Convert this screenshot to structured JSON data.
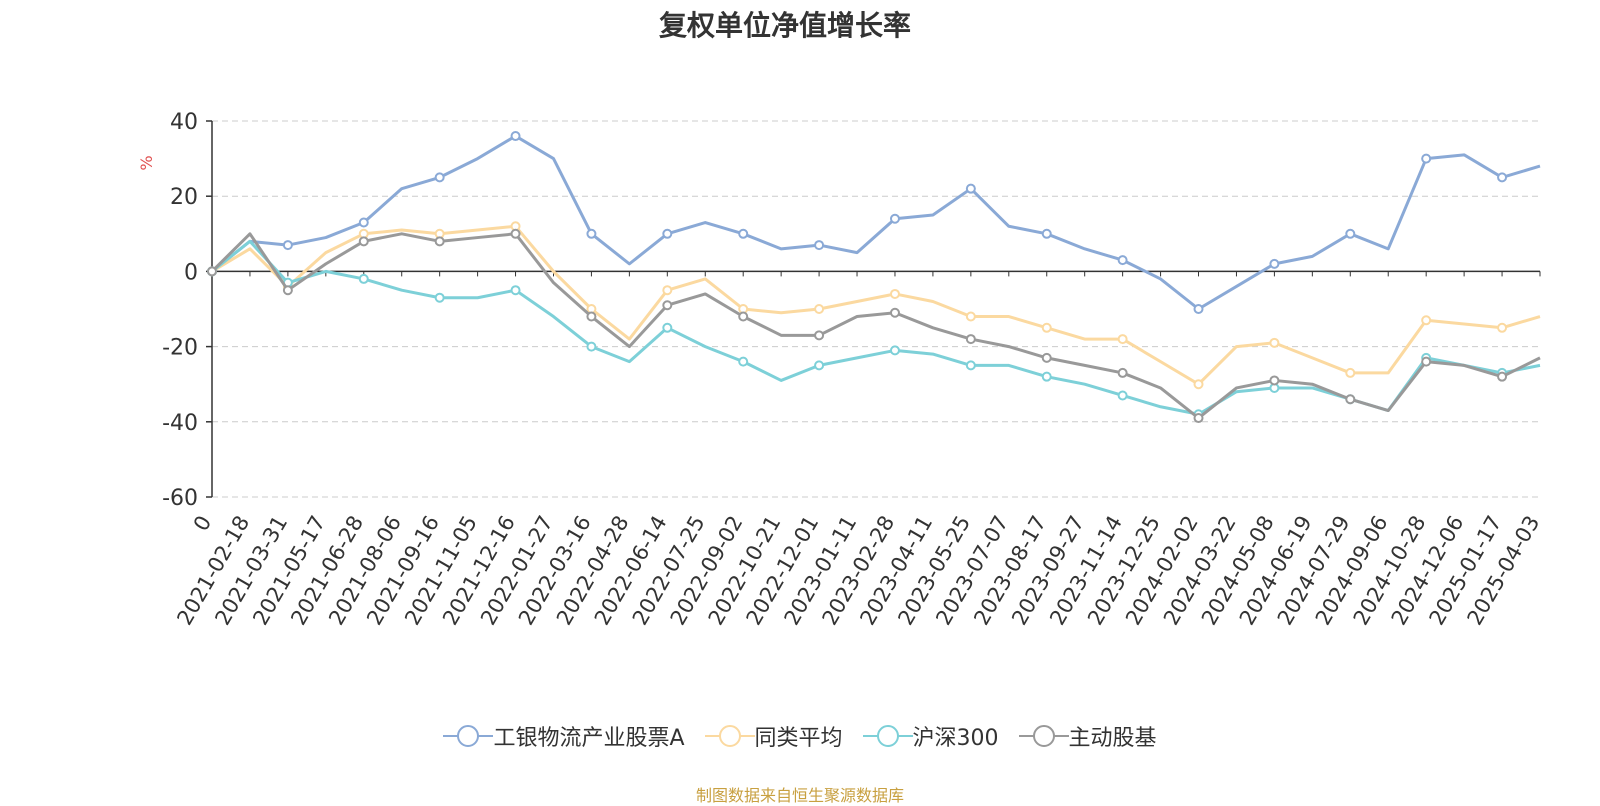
{
  "chart_data": {
    "type": "line",
    "title": "复权单位净值增长率",
    "ylabel": "%",
    "xlabel": "",
    "ylim": [
      -60,
      40
    ],
    "yticks": [
      40,
      20,
      0,
      -20,
      -40,
      -60
    ],
    "grid": true,
    "legend_position": "bottom",
    "x_tick_labels": [
      "0",
      "2021-02-18",
      "2021-03-31",
      "2021-05-17",
      "2021-06-28",
      "2021-08-06",
      "2021-09-16",
      "2021-11-05",
      "2021-12-16",
      "2022-01-27",
      "2022-03-16",
      "2022-04-28",
      "2022-06-14",
      "2022-07-25",
      "2022-09-02",
      "2022-10-21",
      "2022-12-01",
      "2023-01-11",
      "2023-02-28",
      "2023-04-11",
      "2023-05-25",
      "2023-07-07",
      "2023-08-17",
      "2023-09-27",
      "2023-11-14",
      "2023-12-25",
      "2024-02-02",
      "2024-03-22",
      "2024-05-08",
      "2024-06-19",
      "2024-07-29",
      "2024-09-06",
      "2024-10-28",
      "2024-12-06",
      "2025-01-17",
      "2025-04-03"
    ],
    "series": [
      {
        "name": "工银物流产业股票A",
        "color": "#8aa9d6",
        "values": [
          0,
          8,
          7,
          9,
          13,
          22,
          25,
          30,
          36,
          30,
          10,
          2,
          10,
          13,
          10,
          6,
          7,
          5,
          14,
          15,
          22,
          12,
          10,
          6,
          3,
          -2,
          -10,
          -4,
          2,
          4,
          10,
          6,
          30,
          31,
          25,
          28
        ]
      },
      {
        "name": "同类平均",
        "color": "#fbd9a0",
        "values": [
          0,
          6,
          -4,
          5,
          10,
          11,
          10,
          11,
          12,
          0,
          -10,
          -18,
          -5,
          -2,
          -10,
          -11,
          -10,
          -8,
          -6,
          -8,
          -12,
          -12,
          -15,
          -18,
          -18,
          -24,
          -30,
          -20,
          -19,
          -23,
          -27,
          -27,
          -13,
          -14,
          -15,
          -12
        ]
      },
      {
        "name": "沪深300",
        "color": "#7dd0d8",
        "values": [
          0,
          8,
          -3,
          0,
          -2,
          -5,
          -7,
          -7,
          -5,
          -12,
          -20,
          -24,
          -15,
          -20,
          -24,
          -29,
          -25,
          -23,
          -21,
          -22,
          -25,
          -25,
          -28,
          -30,
          -33,
          -36,
          -38,
          -32,
          -31,
          -31,
          -34,
          -37,
          -23,
          -25,
          -27,
          -25
        ]
      },
      {
        "name": "主动股基",
        "color": "#999999",
        "values": [
          0,
          10,
          -5,
          2,
          8,
          10,
          8,
          9,
          10,
          -3,
          -12,
          -20,
          -9,
          -6,
          -12,
          -17,
          -17,
          -12,
          -11,
          -15,
          -18,
          -20,
          -23,
          -25,
          -27,
          -31,
          -39,
          -31,
          -29,
          -30,
          -34,
          -37,
          -24,
          -25,
          -28,
          -23
        ]
      }
    ]
  },
  "legend": {
    "items": [
      "工银物流产业股票A",
      "同类平均",
      "沪深300",
      "主动股基"
    ]
  },
  "source_note": "制图数据来自恒生聚源数据库"
}
